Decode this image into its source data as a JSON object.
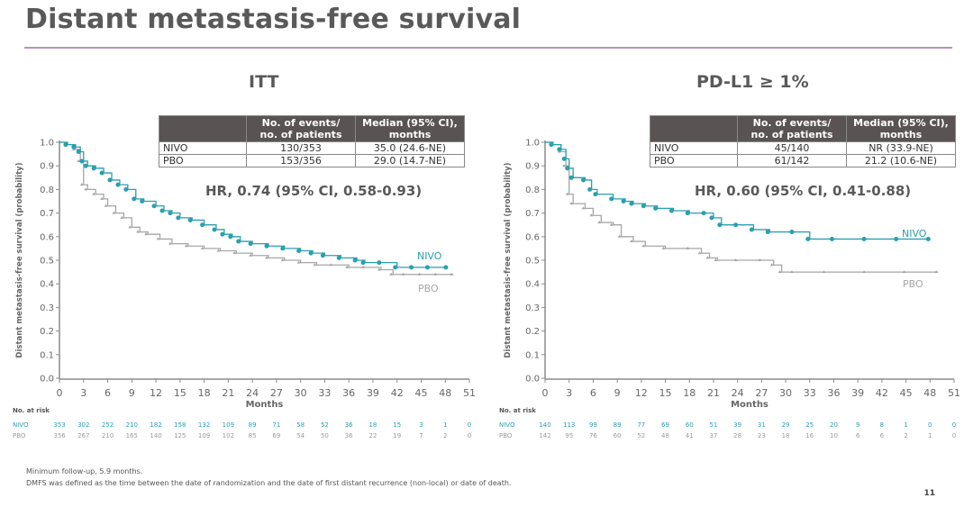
{
  "slide": {
    "title": "Distant metastasis-free survival",
    "page_number": "11",
    "footnotes": [
      "Minimum follow-up, 5.9 months.",
      "DMFS was defined as the time between the date of randomization and the date of first distant recurrence (non-local) or date of death."
    ]
  },
  "colors": {
    "nivo": "#2a9fae",
    "pbo": "#a6a6a6",
    "title_rule": "#b893c0",
    "table_header": "#595453"
  },
  "panels": [
    {
      "title": "ITT",
      "table": {
        "headers": [
          "",
          "No. of events/ no. of patients",
          "Median (95% CI), months"
        ],
        "header_lines": [
          [
            "No. of events/",
            "no. of patients"
          ],
          [
            "Median (95% CI),",
            "months"
          ]
        ],
        "rows": [
          {
            "arm": "NIVO",
            "events": "130/353",
            "median": "35.0 (24.6-NE)"
          },
          {
            "arm": "PBO",
            "events": "153/356",
            "median": "29.0 (14.7-NE)"
          }
        ]
      },
      "hr_text": "HR, 0.74 (95% CI, 0.58-0.93)",
      "risk_label": "No. at risk",
      "risk": {
        "NIVO": [
          "353",
          "302",
          "252",
          "210",
          "182",
          "158",
          "132",
          "109",
          "89",
          "71",
          "58",
          "52",
          "36",
          "18",
          "15",
          "3",
          "1",
          "0"
        ],
        "PBO": [
          "356",
          "267",
          "210",
          "165",
          "140",
          "125",
          "109",
          "102",
          "85",
          "69",
          "54",
          "50",
          "36",
          "22",
          "19",
          "7",
          "2",
          "0"
        ]
      }
    },
    {
      "title": "PD-L1 ≥ 1%",
      "table": {
        "headers": [
          "",
          "No. of events/ no. of patients",
          "Median (95% CI), months"
        ],
        "header_lines": [
          [
            "No. of events/",
            "no. of patients"
          ],
          [
            "Median (95% CI),",
            "months"
          ]
        ],
        "rows": [
          {
            "arm": "NIVO",
            "events": "45/140",
            "median": "NR (33.9-NE)"
          },
          {
            "arm": "PBO",
            "events": "61/142",
            "median": "21.2 (10.6-NE)"
          }
        ]
      },
      "hr_text": "HR, 0.60 (95% CI, 0.41-0.88)",
      "risk_label": "No. at risk",
      "risk": {
        "NIVO": [
          "140",
          "113",
          "99",
          "89",
          "77",
          "69",
          "60",
          "51",
          "39",
          "31",
          "29",
          "25",
          "20",
          "9",
          "8",
          "1",
          "0",
          "0"
        ],
        "PBO": [
          "142",
          "95",
          "76",
          "60",
          "52",
          "48",
          "41",
          "37",
          "28",
          "23",
          "18",
          "16",
          "10",
          "6",
          "6",
          "2",
          "1",
          "0"
        ]
      }
    }
  ],
  "chart_data": [
    {
      "type": "line",
      "step": true,
      "title": "ITT",
      "xlabel": "Months",
      "ylabel": "Distant metastasis-free survival (probability)",
      "xlim": [
        0,
        51
      ],
      "ylim": [
        0,
        1.0
      ],
      "xticks": [
        "0",
        "3",
        "6",
        "9",
        "12",
        "15",
        "18",
        "21",
        "24",
        "27",
        "30",
        "33",
        "36",
        "39",
        "42",
        "45",
        "48",
        "51"
      ],
      "yticks": [
        "0.0",
        "0.1",
        "0.2",
        "0.3",
        "0.4",
        "0.5",
        "0.6",
        "0.7",
        "0.8",
        "0.9",
        "1.0"
      ],
      "grid": false,
      "series": [
        {
          "name": "NIVO",
          "x": [
            0,
            1,
            2,
            2.6,
            3,
            3.5,
            4.5,
            5.5,
            6.5,
            7.5,
            8.5,
            9.5,
            10.5,
            12,
            13,
            14,
            15,
            16.5,
            18,
            19.5,
            20.5,
            21.5,
            22.5,
            24,
            26,
            28,
            30,
            31.5,
            33,
            35,
            37,
            38,
            40,
            42,
            44,
            46,
            48.3
          ],
          "y": [
            1.0,
            0.99,
            0.98,
            0.96,
            0.92,
            0.9,
            0.89,
            0.87,
            0.84,
            0.82,
            0.8,
            0.76,
            0.75,
            0.73,
            0.71,
            0.7,
            0.68,
            0.67,
            0.65,
            0.63,
            0.61,
            0.6,
            0.58,
            0.57,
            0.56,
            0.55,
            0.54,
            0.53,
            0.52,
            0.51,
            0.5,
            0.49,
            0.49,
            0.47,
            0.47,
            0.47,
            0.47
          ]
        },
        {
          "name": "PBO",
          "x": [
            0,
            1,
            2,
            2.6,
            3,
            3.5,
            4.5,
            5.5,
            6,
            7,
            8,
            9,
            10,
            11,
            12.5,
            14,
            16,
            18,
            20,
            22,
            24,
            26,
            28,
            30,
            32,
            34,
            36,
            38,
            40,
            41.5,
            43,
            45,
            47,
            49
          ],
          "y": [
            1.0,
            0.99,
            0.97,
            0.92,
            0.82,
            0.8,
            0.78,
            0.76,
            0.73,
            0.7,
            0.68,
            0.64,
            0.62,
            0.61,
            0.59,
            0.57,
            0.56,
            0.55,
            0.54,
            0.53,
            0.52,
            0.51,
            0.5,
            0.49,
            0.48,
            0.48,
            0.47,
            0.47,
            0.46,
            0.44,
            0.44,
            0.44,
            0.44,
            0.44
          ]
        }
      ],
      "legend": [
        {
          "label": "NIVO",
          "placement": "right, above curve"
        },
        {
          "label": "PBO",
          "placement": "right, below curve"
        }
      ]
    },
    {
      "type": "line",
      "step": true,
      "title": "PD-L1 ≥ 1%",
      "xlabel": "Months",
      "ylabel": "Distant metastasis-free survival (probability)",
      "xlim": [
        0,
        51
      ],
      "ylim": [
        0,
        1.0
      ],
      "xticks": [
        "0",
        "3",
        "6",
        "9",
        "12",
        "15",
        "18",
        "21",
        "24",
        "27",
        "30",
        "33",
        "36",
        "39",
        "42",
        "45",
        "48",
        "51"
      ],
      "yticks": [
        "0.0",
        "0.1",
        "0.2",
        "0.3",
        "0.4",
        "0.5",
        "0.6",
        "0.7",
        "0.8",
        "0.9",
        "1.0"
      ],
      "grid": false,
      "series": [
        {
          "name": "NIVO",
          "x": [
            0,
            1,
            2,
            2.6,
            3,
            3.5,
            5,
            5.8,
            6.5,
            8.5,
            10,
            11,
            12.5,
            14,
            16,
            18,
            20,
            21,
            22,
            24,
            26,
            28,
            31,
            33,
            36,
            40,
            44,
            48
          ],
          "y": [
            1.0,
            0.99,
            0.97,
            0.93,
            0.89,
            0.85,
            0.84,
            0.8,
            0.78,
            0.76,
            0.75,
            0.74,
            0.73,
            0.72,
            0.71,
            0.7,
            0.7,
            0.68,
            0.65,
            0.65,
            0.63,
            0.62,
            0.62,
            0.59,
            0.59,
            0.59,
            0.59,
            0.59
          ]
        },
        {
          "name": "PBO",
          "x": [
            0,
            1,
            2,
            2.6,
            3,
            3.5,
            5,
            6,
            7,
            8.5,
            9.5,
            11,
            12.5,
            15,
            18,
            19.5,
            20.5,
            21.5,
            24,
            27,
            28.5,
            29.5,
            31,
            35,
            40,
            45,
            49
          ],
          "y": [
            1.0,
            0.99,
            0.96,
            0.9,
            0.78,
            0.74,
            0.72,
            0.69,
            0.66,
            0.65,
            0.6,
            0.58,
            0.56,
            0.55,
            0.55,
            0.53,
            0.51,
            0.5,
            0.5,
            0.5,
            0.48,
            0.45,
            0.45,
            0.45,
            0.45,
            0.45,
            0.45
          ]
        }
      ],
      "legend": [
        {
          "label": "NIVO",
          "placement": "right, above curve"
        },
        {
          "label": "PBO",
          "placement": "right, below curve"
        }
      ]
    }
  ]
}
